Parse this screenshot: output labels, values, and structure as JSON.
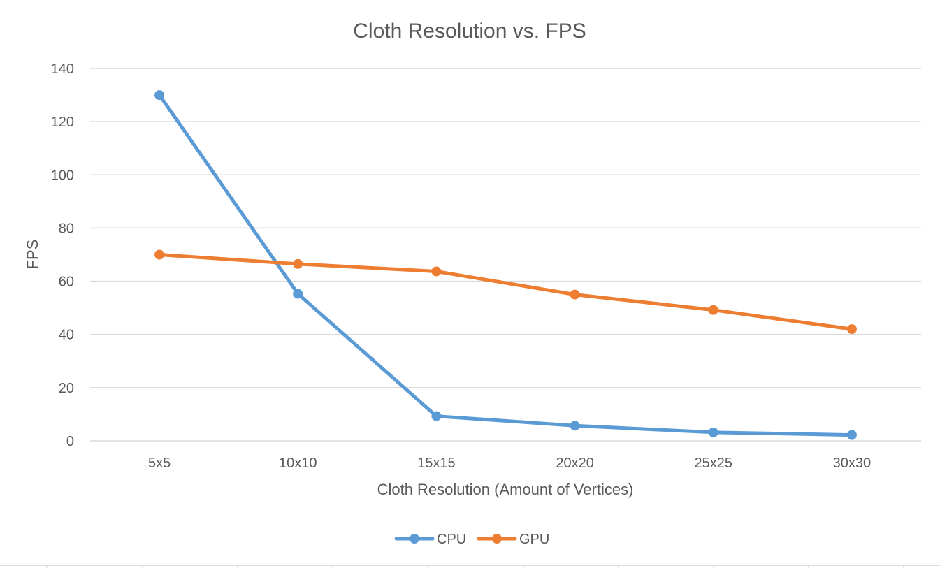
{
  "chart_data": {
    "type": "line",
    "title": "Cloth Resolution vs. FPS",
    "xlabel": "Cloth Resolution (Amount of Vertices)",
    "ylabel": "FPS",
    "categories": [
      "5x5",
      "10x10",
      "15x15",
      "20x20",
      "25x25",
      "30x30"
    ],
    "ylim": [
      0,
      140
    ],
    "yticks": [
      "0",
      "20",
      "40",
      "60",
      "80",
      "100",
      "120",
      "140"
    ],
    "grid": true,
    "legend_position": "bottom",
    "series": [
      {
        "name": "CPU",
        "color": "#5b9bd5",
        "values": [
          130,
          55.3,
          9.3,
          5.7,
          3.2,
          2.2
        ]
      },
      {
        "name": "GPU",
        "color": "#ed7d31",
        "values": [
          70,
          66.5,
          63.7,
          55,
          49.2,
          42
        ]
      }
    ]
  }
}
